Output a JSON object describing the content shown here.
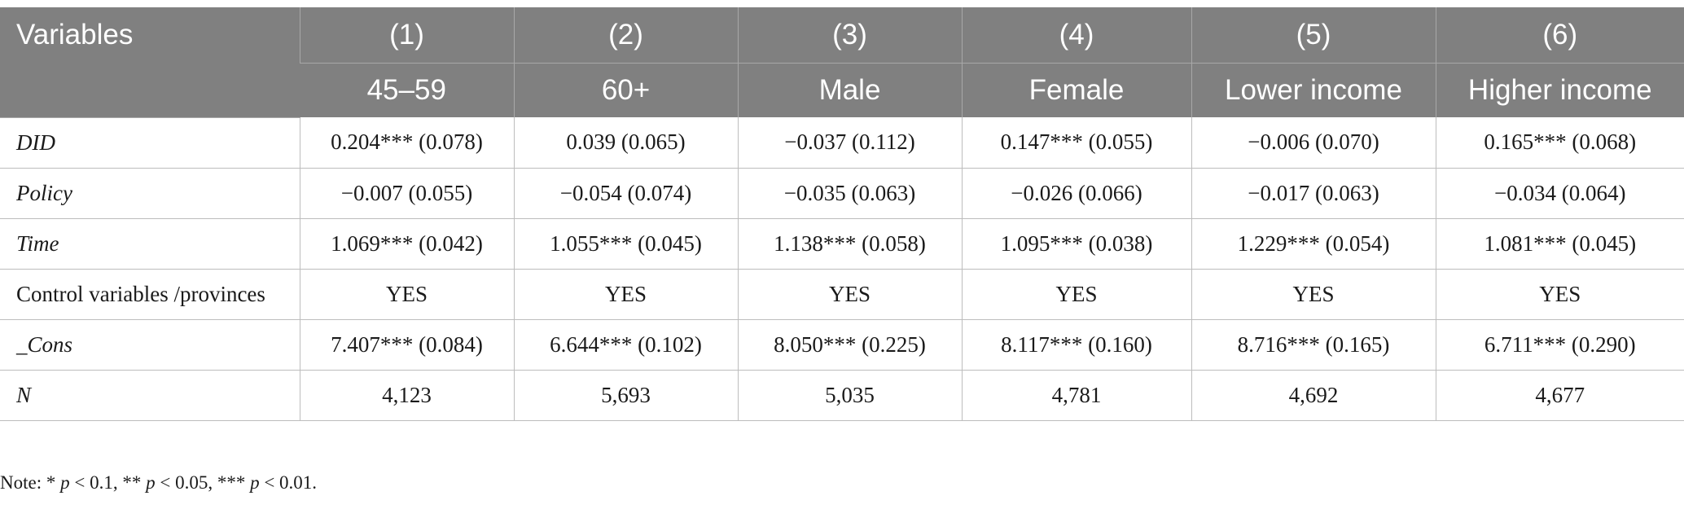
{
  "table": {
    "header_row1": [
      "Variables",
      "(1)",
      "(2)",
      "(3)",
      "(4)",
      "(5)",
      "(6)"
    ],
    "header_row2": [
      "45–59",
      "60+",
      "Male",
      "Female",
      "Lower income",
      "Higher income"
    ],
    "rows": [
      {
        "label": "DID",
        "italic": true,
        "cells": [
          "0.204*** (0.078)",
          "0.039 (0.065)",
          "−0.037 (0.112)",
          "0.147*** (0.055)",
          "−0.006 (0.070)",
          "0.165*** (0.068)"
        ]
      },
      {
        "label": "Policy",
        "italic": true,
        "cells": [
          "−0.007 (0.055)",
          "−0.054 (0.074)",
          "−0.035 (0.063)",
          "−0.026 (0.066)",
          "−0.017 (0.063)",
          "−0.034 (0.064)"
        ]
      },
      {
        "label": "Time",
        "italic": true,
        "cells": [
          "1.069*** (0.042)",
          "1.055*** (0.045)",
          "1.138*** (0.058)",
          "1.095*** (0.038)",
          "1.229*** (0.054)",
          "1.081*** (0.045)"
        ]
      },
      {
        "label": "Control variables /provinces",
        "italic": false,
        "cells": [
          "YES",
          "YES",
          "YES",
          "YES",
          "YES",
          "YES"
        ]
      },
      {
        "label": "_Cons",
        "italic": true,
        "cells": [
          "7.407*** (0.084)",
          "6.644*** (0.102)",
          "8.050*** (0.225)",
          "8.117*** (0.160)",
          "8.716*** (0.165)",
          "6.711*** (0.290)"
        ]
      },
      {
        "label": "N",
        "italic": true,
        "cells": [
          "4,123",
          "5,693",
          "5,035",
          "4,781",
          "4,692",
          "4,677"
        ]
      }
    ]
  },
  "note": {
    "prefix": "Note: ",
    "parts": [
      {
        "stars": "* ",
        "p": "p",
        "rest": " < 0.1, "
      },
      {
        "stars": "** ",
        "p": "p",
        "rest": " < 0.05, "
      },
      {
        "stars": "*** ",
        "p": "p",
        "rest": " < 0.01."
      }
    ]
  },
  "colors": {
    "header_bg": "#808080",
    "header_text": "#ffffff",
    "grid_line": "#bdbdbd"
  }
}
